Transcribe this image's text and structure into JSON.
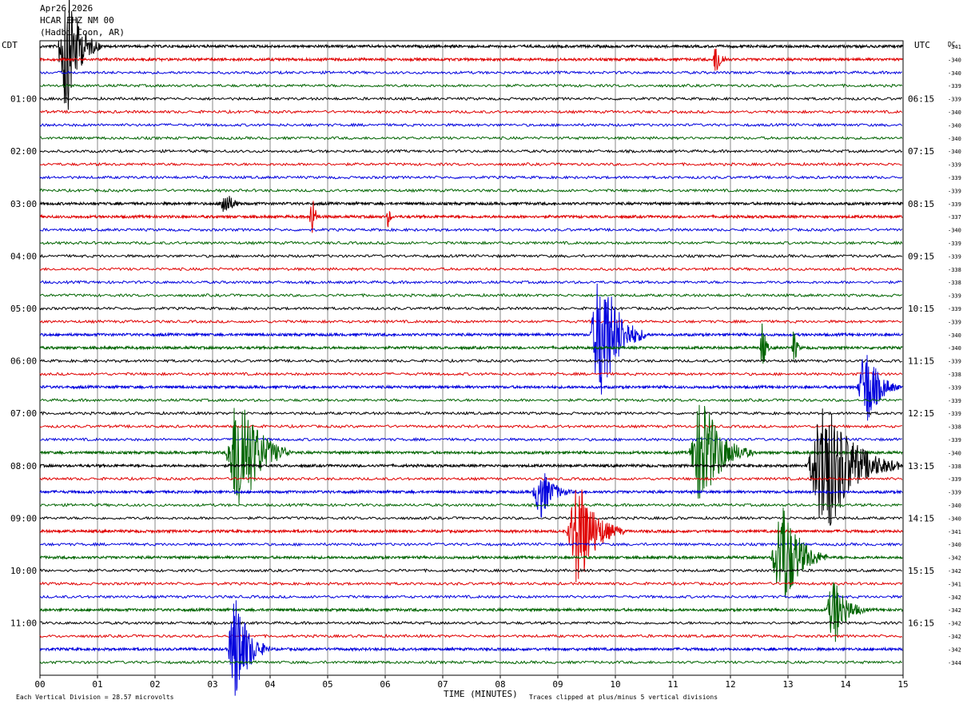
{
  "header": {
    "date": "Apr26,2026",
    "station": "HCAR EHZ NM 00",
    "location": "(Hadbi Coon, AR)"
  },
  "tz_left": "CDT",
  "tz_right": "UTC",
  "dc_label": "DC",
  "footer": {
    "scale_text": "Each Vertical Division =   28.57 microvolts",
    "xlabel": "TIME (MINUTES)",
    "clip_text": "Traces clipped at plus/minus 5 vertical divisions"
  },
  "chart_data": {
    "type": "line",
    "title": "Apr26,2026 HCAR EHZ NM 00 (Hadbi Coon, AR)",
    "xlabel": "TIME (MINUTES)",
    "x_ticks": [
      "00",
      "01",
      "02",
      "03",
      "04",
      "05",
      "06",
      "07",
      "08",
      "09",
      "10",
      "11",
      "12",
      "13",
      "14",
      "15"
    ],
    "xlim": [
      0,
      15
    ],
    "grid": true,
    "trace_colors": [
      "#000000",
      "#e00000",
      "#0000dd",
      "#006400"
    ],
    "left_labels": [
      {
        "row": 4,
        "text": "01:00"
      },
      {
        "row": 8,
        "text": "02:00"
      },
      {
        "row": 12,
        "text": "03:00"
      },
      {
        "row": 16,
        "text": "04:00"
      },
      {
        "row": 20,
        "text": "05:00"
      },
      {
        "row": 24,
        "text": "06:00"
      },
      {
        "row": 28,
        "text": "07:00"
      },
      {
        "row": 32,
        "text": "08:00"
      },
      {
        "row": 36,
        "text": "09:00"
      },
      {
        "row": 40,
        "text": "10:00"
      },
      {
        "row": 44,
        "text": "11:00"
      }
    ],
    "right_labels": [
      {
        "row": 4,
        "text": "06:15"
      },
      {
        "row": 8,
        "text": "07:15"
      },
      {
        "row": 12,
        "text": "08:15"
      },
      {
        "row": 16,
        "text": "09:15"
      },
      {
        "row": 20,
        "text": "10:15"
      },
      {
        "row": 24,
        "text": "11:15"
      },
      {
        "row": 28,
        "text": "12:15"
      },
      {
        "row": 32,
        "text": "13:15"
      },
      {
        "row": 36,
        "text": "14:15"
      },
      {
        "row": 40,
        "text": "15:15"
      },
      {
        "row": 44,
        "text": "16:15"
      }
    ],
    "dc_values": [
      "-341",
      "-340",
      "-340",
      "-339",
      "-339",
      "-340",
      "-340",
      "-340",
      "-340",
      "-339",
      "-339",
      "-339",
      "-339",
      "-337",
      "-340",
      "-339",
      "-339",
      "-338",
      "-338",
      "-339",
      "-339",
      "-339",
      "-340",
      "-340",
      "-339",
      "-338",
      "-339",
      "-339",
      "-339",
      "-338",
      "-339",
      "-340",
      "-338",
      "-339",
      "-339",
      "-340",
      "-340",
      "-341",
      "-340",
      "-342",
      "-342",
      "-341",
      "-342",
      "-342",
      "-342",
      "-342",
      "-342",
      "-344"
    ],
    "events": [
      {
        "row": 0,
        "minute": 0.45,
        "amp": 5,
        "dur": 0.6
      },
      {
        "row": 1,
        "minute": 11.75,
        "amp": 1.3,
        "dur": 0.25
      },
      {
        "row": 12,
        "minute": 3.2,
        "amp": 1.0,
        "dur": 0.4
      },
      {
        "row": 13,
        "minute": 4.72,
        "amp": 2.0,
        "dur": 0.15
      },
      {
        "row": 13,
        "minute": 6.05,
        "amp": 0.8,
        "dur": 0.12
      },
      {
        "row": 22,
        "minute": 9.75,
        "amp": 5,
        "dur": 0.8
      },
      {
        "row": 23,
        "minute": 12.55,
        "amp": 2.2,
        "dur": 0.15
      },
      {
        "row": 23,
        "minute": 13.1,
        "amp": 1.4,
        "dur": 0.15
      },
      {
        "row": 26,
        "minute": 14.35,
        "amp": 3.0,
        "dur": 0.6
      },
      {
        "row": 31,
        "minute": 3.45,
        "amp": 5,
        "dur": 0.9
      },
      {
        "row": 31,
        "minute": 11.5,
        "amp": 4,
        "dur": 0.9
      },
      {
        "row": 32,
        "minute": 13.65,
        "amp": 5,
        "dur": 1.3
      },
      {
        "row": 34,
        "minute": 8.7,
        "amp": 1.8,
        "dur": 0.6
      },
      {
        "row": 37,
        "minute": 9.35,
        "amp": 4,
        "dur": 0.8
      },
      {
        "row": 39,
        "minute": 12.9,
        "amp": 4,
        "dur": 0.8
      },
      {
        "row": 43,
        "minute": 13.8,
        "amp": 2.4,
        "dur": 0.6
      },
      {
        "row": 46,
        "minute": 3.4,
        "amp": 4,
        "dur": 0.6
      }
    ]
  }
}
